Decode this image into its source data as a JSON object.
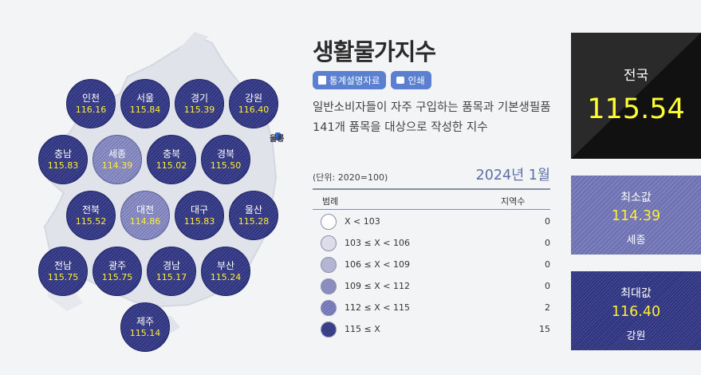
{
  "title": "생활물가지수",
  "buttons": {
    "stats_doc": "통계설명자료",
    "print": "인쇄"
  },
  "description": "일반소비자들이 자주 구입하는 품목과 기본생필품 141개 품목을 대상으로 작성한 지수",
  "unit": "(단위: 2020=100)",
  "period": "2024년 1월",
  "legend": {
    "header_label": "범례",
    "header_count": "지역수",
    "rows": [
      {
        "range": "X  <  103",
        "count": "0",
        "color": "#ffffff"
      },
      {
        "range": "103  ≤  X  <  106",
        "count": "0",
        "color": "#dcdcea"
      },
      {
        "range": "106  ≤  X  <  109",
        "count": "0",
        "color": "#b3b5d3"
      },
      {
        "range": "109  ≤  X  <  112",
        "count": "0",
        "color": "#8a8dbd"
      },
      {
        "range": "112  ≤  X  <  115",
        "count": "2",
        "color": "#6f72b3"
      },
      {
        "range": "115  ≤  X",
        "count": "15",
        "color": "#2f3480"
      }
    ]
  },
  "national": {
    "label": "전국",
    "value": "115.54"
  },
  "min": {
    "label": "최소값",
    "value": "114.39",
    "region": "세종"
  },
  "max": {
    "label": "최대값",
    "value": "116.40",
    "region": "강원"
  },
  "ulleung_label": "울릉",
  "regions": [
    {
      "name": "인천",
      "value": "116.16",
      "shade": "dark"
    },
    {
      "name": "서울",
      "value": "115.84",
      "shade": "dark"
    },
    {
      "name": "경기",
      "value": "115.39",
      "shade": "dark"
    },
    {
      "name": "강원",
      "value": "116.40",
      "shade": "dark"
    },
    {
      "name": "충남",
      "value": "115.83",
      "shade": "dark"
    },
    {
      "name": "세종",
      "value": "114.39",
      "shade": "light"
    },
    {
      "name": "충북",
      "value": "115.02",
      "shade": "dark"
    },
    {
      "name": "경북",
      "value": "115.50",
      "shade": "dark"
    },
    {
      "name": "전북",
      "value": "115.52",
      "shade": "dark"
    },
    {
      "name": "대전",
      "value": "114.86",
      "shade": "light"
    },
    {
      "name": "대구",
      "value": "115.83",
      "shade": "dark"
    },
    {
      "name": "울산",
      "value": "115.28",
      "shade": "dark"
    },
    {
      "name": "전남",
      "value": "115.75",
      "shade": "dark"
    },
    {
      "name": "광주",
      "value": "115.75",
      "shade": "dark"
    },
    {
      "name": "경남",
      "value": "115.17",
      "shade": "dark"
    },
    {
      "name": "부산",
      "value": "115.24",
      "shade": "dark"
    },
    {
      "name": "제주",
      "value": "115.14",
      "shade": "dark"
    }
  ]
}
